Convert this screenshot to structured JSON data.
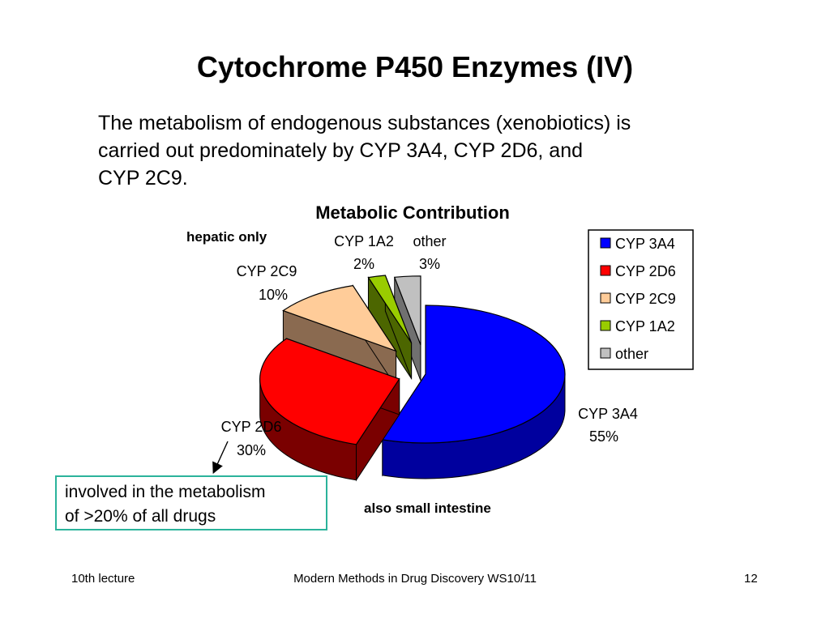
{
  "slide": {
    "title": "Cytochrome P450 Enzymes (IV)",
    "intro_lines": [
      "The metabolism of endogenous substances (xenobiotics) is",
      "carried out predominately by CYP 3A4, CYP 2D6, and",
      "CYP 2C9."
    ],
    "callout_lines": [
      "involved in the metabolism",
      "of >20% of all drugs"
    ]
  },
  "footer": {
    "left": "10th lecture",
    "center": "Modern Methods in Drug Discovery WS10/11",
    "right": "12"
  },
  "chart_data": {
    "type": "pie",
    "title": "Metabolic Contribution",
    "annotations": [
      "hepatic only",
      "also small intestine"
    ],
    "legend_position": "right",
    "slices": [
      {
        "label": "CYP 3A4",
        "value": 55,
        "value_label": "55%",
        "color": "#0000ff",
        "side": "#00009e",
        "exploded": false
      },
      {
        "label": "CYP 2D6",
        "value": 30,
        "value_label": "30%",
        "color": "#ff0000",
        "side": "#7a0000",
        "exploded": true
      },
      {
        "label": "CYP 2C9",
        "value": 10,
        "value_label": "10%",
        "color": "#ffcc99",
        "side": "#8a6a50",
        "exploded": true
      },
      {
        "label": "CYP 1A2",
        "value": 2,
        "value_label": "2%",
        "color": "#99cc00",
        "side": "#4c6600",
        "exploded": true
      },
      {
        "label": "other",
        "value": 3,
        "value_label": "3%",
        "color": "#c0c0c0",
        "side": "#707070",
        "exploded": true
      }
    ]
  }
}
